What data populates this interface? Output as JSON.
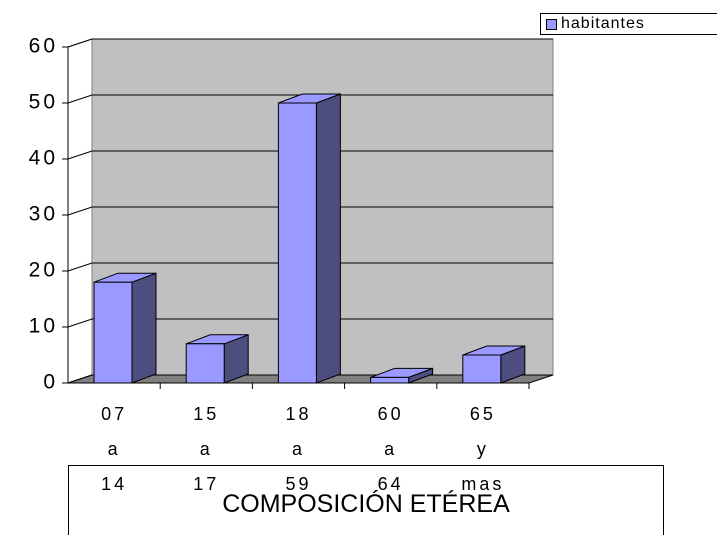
{
  "chart_data": {
    "type": "bar3d",
    "title": "COMPOSICIÓN ETÉREA",
    "categories": [
      "07 a 14",
      "15 a 17",
      "18 a 59",
      "60 a 64",
      "65 y mas"
    ],
    "series": [
      {
        "name": "habitantes",
        "color": "#9999ff",
        "values": [
          18,
          7,
          50,
          1,
          5
        ]
      }
    ],
    "ylim": [
      0,
      60
    ],
    "yticks": [
      0,
      10,
      20,
      30,
      40,
      50,
      60
    ],
    "grid": true,
    "legend": "top-right"
  }
}
